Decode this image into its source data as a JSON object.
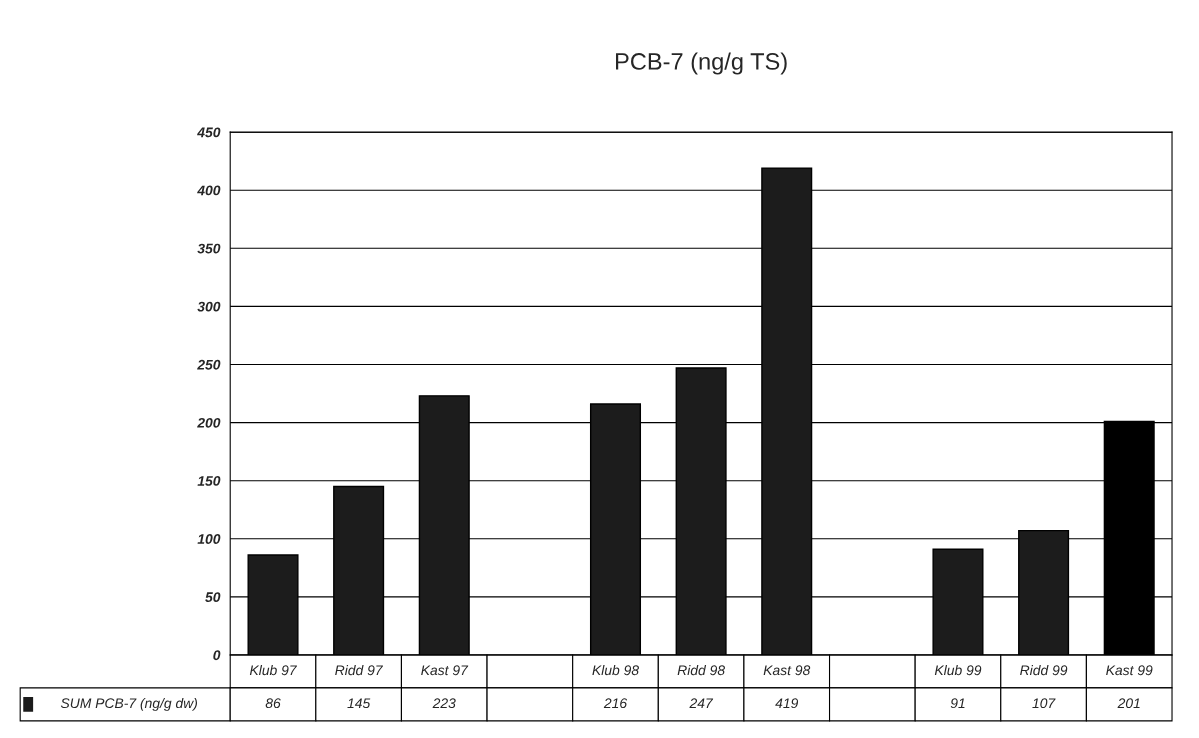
{
  "chart_data": {
    "type": "bar",
    "title": "PCB-7 (ng/g TS)",
    "categories": [
      "Klub 97",
      "Ridd 97",
      "Kast 97",
      null,
      "Klub 98",
      "Ridd 98",
      "Kast 98",
      null,
      "Klub 99",
      "Ridd 99",
      "Kast 99"
    ],
    "series": [
      {
        "name": "SUM PCB-7 (ng/g dw)",
        "color": "#1c1c1c",
        "colors": [
          "#1c1c1c",
          "#1c1c1c",
          "#1c1c1c",
          "#1c1c1c",
          "#1c1c1c",
          "#1c1c1c",
          "#1c1c1c",
          "#1c1c1c",
          "#1c1c1c",
          "#1c1c1c",
          "#000000"
        ],
        "values": [
          86,
          145,
          223,
          null,
          216,
          247,
          419,
          null,
          91,
          107,
          201
        ]
      }
    ],
    "ylim": [
      0,
      450
    ],
    "yticks": [
      0,
      50,
      100,
      150,
      200,
      250,
      300,
      350,
      400,
      450
    ],
    "grid": "y",
    "legend": "bottom",
    "data_labels": true
  }
}
